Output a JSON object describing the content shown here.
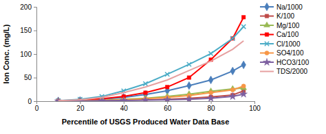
{
  "chart_data": {
    "type": "line",
    "x_label": "Percentile of USGS Produced Water Data Base",
    "y_label": "Ion Conc. (mg/L)",
    "x": [
      10,
      20,
      30,
      40,
      50,
      60,
      70,
      80,
      90,
      95
    ],
    "xlim": [
      0,
      100
    ],
    "xticks": [
      0,
      20,
      40,
      60,
      80,
      100
    ],
    "ylim": [
      0,
      200
    ],
    "yticks": [
      0,
      50,
      100,
      150,
      200
    ],
    "grid": false,
    "legend": "right",
    "series": [
      {
        "name": "Na/1000",
        "color": "#4a7ebb",
        "marker": "diamond",
        "values": [
          0.5,
          1.5,
          4,
          8,
          14,
          22,
          33,
          45,
          64,
          77
        ]
      },
      {
        "name": "K/100",
        "color": "#be4b48",
        "marker": "square",
        "values": [
          0.2,
          0.5,
          1,
          2,
          3,
          4,
          6,
          9,
          13,
          22
        ]
      },
      {
        "name": "Mg/100",
        "color": "#98b954",
        "marker": "triangle",
        "values": [
          0.3,
          1,
          2,
          4,
          6,
          10,
          15,
          21,
          26,
          28
        ]
      },
      {
        "name": "Ca/100",
        "color": "#ff0000",
        "marker": "square",
        "values": [
          0.5,
          2,
          5,
          10,
          18,
          30,
          50,
          88,
          133,
          178
        ]
      },
      {
        "name": "Cl/1000",
        "color": "#4bacc6",
        "marker": "x",
        "values": [
          1,
          4,
          10,
          22,
          37,
          57,
          78,
          101,
          133,
          158
        ]
      },
      {
        "name": "SO4/100",
        "color": "#f79646",
        "marker": "circle",
        "values": [
          0.5,
          1,
          2,
          3,
          5,
          8,
          12,
          18,
          24,
          32
        ]
      },
      {
        "name": "HCO3/100",
        "color": "#7d60a0",
        "marker": "star",
        "values": [
          0.2,
          0.5,
          1,
          1.5,
          2,
          3,
          4,
          6,
          10,
          15
        ]
      },
      {
        "name": "TDS/2000",
        "color": "#e6a0a0",
        "marker": "none",
        "values": [
          1,
          3,
          8,
          18,
          30,
          45,
          65,
          85,
          110,
          128
        ]
      }
    ]
  }
}
